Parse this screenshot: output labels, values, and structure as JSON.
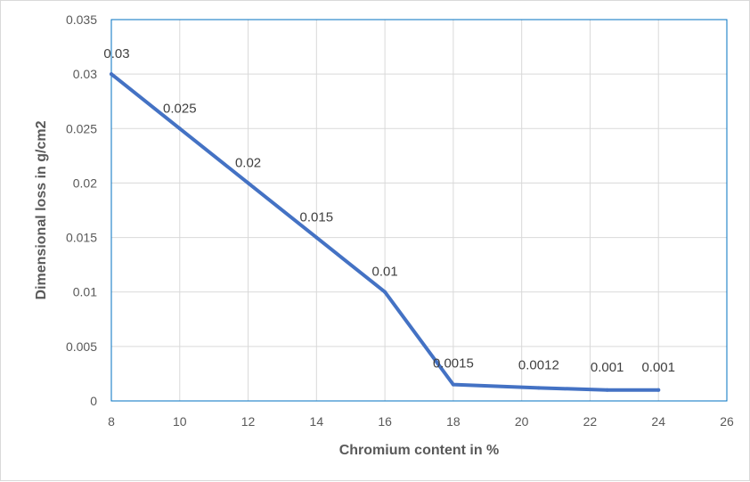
{
  "chart_data": {
    "type": "line",
    "title": "",
    "xlabel": "Chromium content in %",
    "ylabel": "Dimensional loss in g/cm2",
    "xlim": [
      8,
      26
    ],
    "ylim": [
      0,
      0.035
    ],
    "x_ticks": [
      "8",
      "10",
      "12",
      "14",
      "16",
      "18",
      "20",
      "22",
      "24",
      "26"
    ],
    "y_ticks": [
      "0",
      "0.005",
      "0.01",
      "0.015",
      "0.02",
      "0.025",
      "0.03",
      "0.035"
    ],
    "grid": true,
    "legend": "none",
    "series": [
      {
        "color": "#4472c4",
        "x": [
          8,
          10,
          12,
          14,
          16,
          18,
          20.5,
          22.5,
          24
        ],
        "y": [
          0.03,
          0.025,
          0.02,
          0.015,
          0.01,
          0.0015,
          0.0012,
          0.001,
          0.001
        ],
        "labels": [
          "0.03",
          "0.025",
          "0.02",
          "0.015",
          "0.01",
          "0.0015",
          "0.0012",
          "0.001",
          "0.001"
        ]
      }
    ],
    "colors": {
      "grid": "#d9d9d9",
      "plot_border": "#0070c0",
      "axis_text": "#595959"
    }
  }
}
